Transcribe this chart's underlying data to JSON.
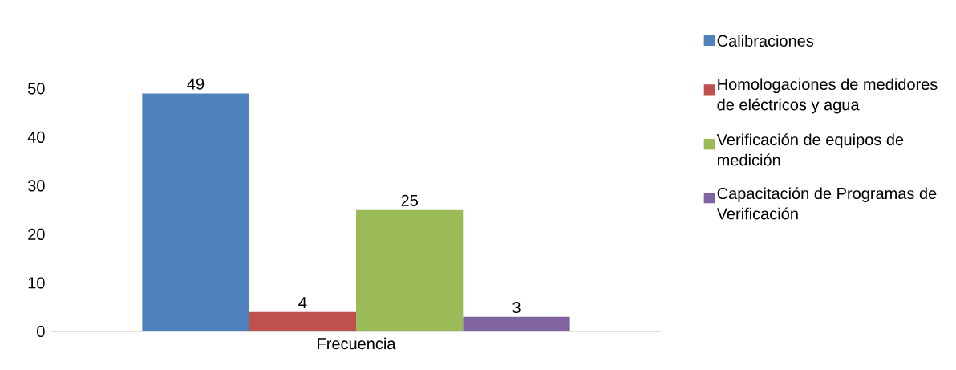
{
  "chart_data": {
    "type": "bar",
    "categories": [
      "Frecuencia"
    ],
    "series": [
      {
        "name": "Calibraciones",
        "color": "#4f81bd",
        "values": [
          49
        ]
      },
      {
        "name": "Homologaciones de medidores de eléctricos y agua",
        "color": "#c0504d",
        "values": [
          4
        ]
      },
      {
        "name": "Verificación de equipos de medición",
        "color": "#9bbb59",
        "values": [
          25
        ]
      },
      {
        "name": "Capacitación de Programas de Verificación",
        "color": "#8064a2",
        "values": [
          3
        ]
      }
    ],
    "ylim": [
      0,
      50
    ],
    "yticks": [
      0,
      10,
      20,
      30,
      40,
      50
    ],
    "data_labels": true,
    "grid": false,
    "legend": "right"
  }
}
